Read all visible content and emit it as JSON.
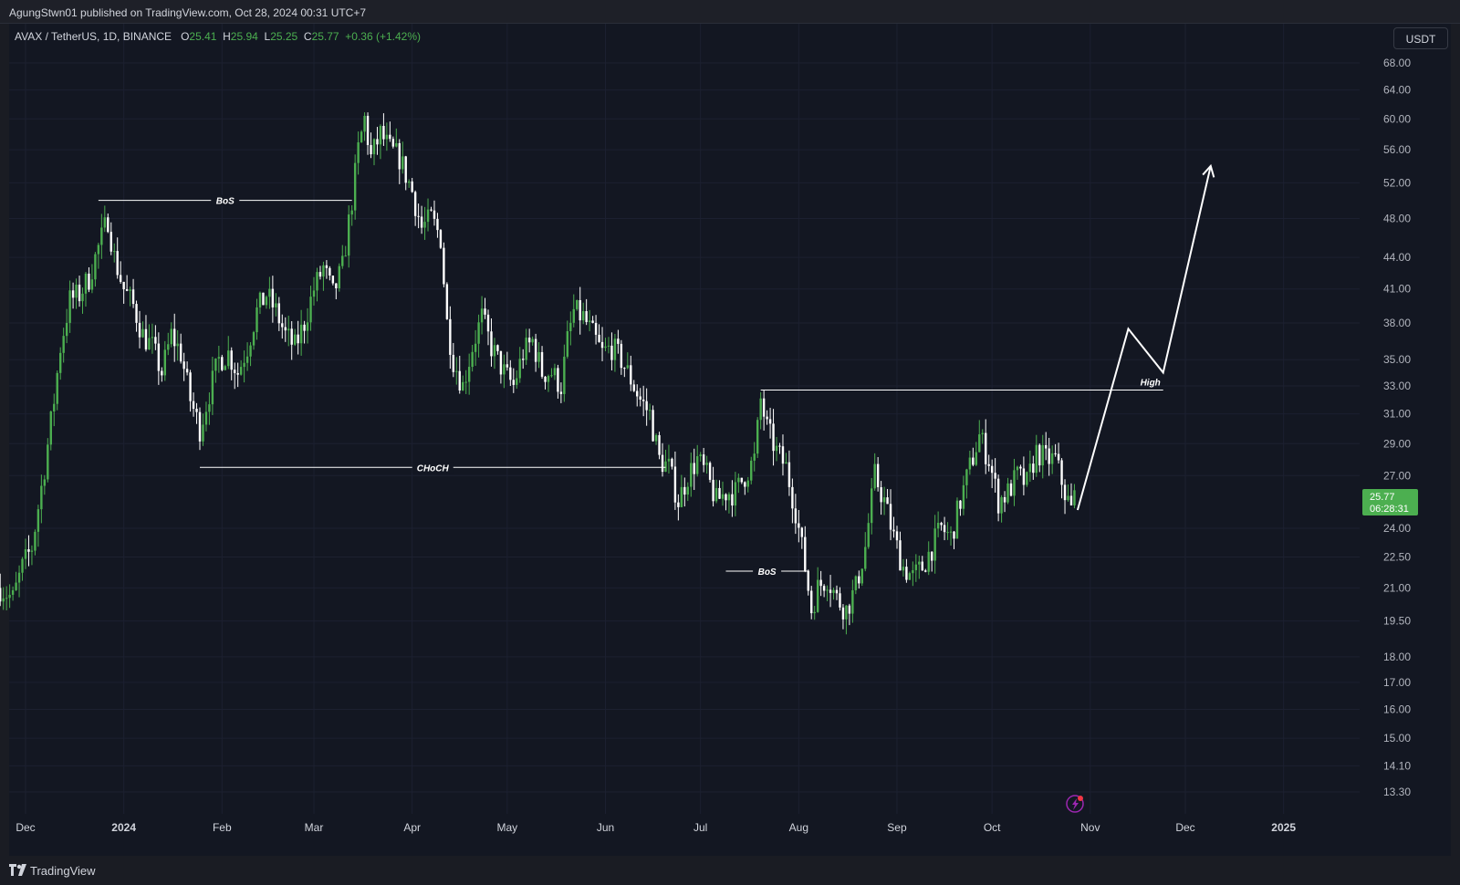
{
  "header": {
    "published_text": "AgungStwn01 published on TradingView.com, Oct 28, 2024 00:31 UTC+7"
  },
  "legend": {
    "symbol": "AVAX / TetherUS, 1D, BINANCE",
    "o_label": "O",
    "o_value": "25.41",
    "h_label": "H",
    "h_value": "25.94",
    "l_label": "L",
    "l_value": "25.25",
    "c_label": "C",
    "c_value": "25.77",
    "change": "+0.36 (+1.42%)"
  },
  "currency_button": "USDT",
  "price_tag": {
    "price": "25.77",
    "countdown": "06:28:31"
  },
  "footer": {
    "brand": "TradingView",
    "logo_icon": "tradingview-logo-icon"
  },
  "indicator_icon": "lightning-bolt-icon",
  "colors": {
    "up": "#4caf50",
    "down": "#ffffff",
    "bg": "#131722",
    "accent_red": "#f23645",
    "accent_purple": "#9c27b0"
  },
  "chart_data": {
    "type": "candlestick",
    "scale": "log",
    "y_ticks": [
      "68.00",
      "64.00",
      "60.00",
      "56.00",
      "52.00",
      "48.00",
      "44.00",
      "41.00",
      "38.00",
      "35.00",
      "33.00",
      "31.00",
      "29.00",
      "27.00",
      "24.00",
      "22.50",
      "21.00",
      "19.50",
      "18.00",
      "17.00",
      "16.00",
      "15.00",
      "14.10",
      "13.30"
    ],
    "x_ticks": [
      {
        "label": "Dec",
        "date": "2023-12-01",
        "bold": false
      },
      {
        "label": "2024",
        "date": "2024-01-01",
        "bold": true
      },
      {
        "label": "Feb",
        "date": "2024-02-01",
        "bold": false
      },
      {
        "label": "Mar",
        "date": "2024-03-01",
        "bold": false
      },
      {
        "label": "Apr",
        "date": "2024-04-01",
        "bold": false
      },
      {
        "label": "May",
        "date": "2024-05-01",
        "bold": false
      },
      {
        "label": "Jun",
        "date": "2024-06-01",
        "bold": false
      },
      {
        "label": "Jul",
        "date": "2024-07-01",
        "bold": false
      },
      {
        "label": "Aug",
        "date": "2024-08-01",
        "bold": false
      },
      {
        "label": "Sep",
        "date": "2024-09-01",
        "bold": false
      },
      {
        "label": "Oct",
        "date": "2024-10-01",
        "bold": false
      },
      {
        "label": "Nov",
        "date": "2024-11-01",
        "bold": false
      },
      {
        "label": "Dec",
        "date": "2024-12-01",
        "bold": false
      },
      {
        "label": "2025",
        "date": "2025-01-01",
        "bold": true
      }
    ],
    "price_path": [
      [
        "2023-11-23",
        21.0
      ],
      [
        "2023-11-27",
        20.5
      ],
      [
        "2023-11-30",
        22.0
      ],
      [
        "2023-12-03",
        23.0
      ],
      [
        "2023-12-07",
        27.5
      ],
      [
        "2023-12-10",
        32.0
      ],
      [
        "2023-12-12",
        36.0
      ],
      [
        "2023-12-15",
        40.0
      ],
      [
        "2023-12-18",
        40.5
      ],
      [
        "2023-12-21",
        42.0
      ],
      [
        "2023-12-24",
        45.0
      ],
      [
        "2023-12-27",
        48.0
      ],
      [
        "2023-12-29",
        44.0
      ],
      [
        "2024-01-01",
        41.0
      ],
      [
        "2024-01-04",
        39.5
      ],
      [
        "2024-01-07",
        37.0
      ],
      [
        "2024-01-10",
        36.0
      ],
      [
        "2024-01-13",
        34.0
      ],
      [
        "2024-01-16",
        37.0
      ],
      [
        "2024-01-19",
        35.5
      ],
      [
        "2024-01-22",
        32.0
      ],
      [
        "2024-01-25",
        30.0
      ],
      [
        "2024-01-28",
        32.5
      ],
      [
        "2024-01-31",
        35.0
      ],
      [
        "2024-02-03",
        35.5
      ],
      [
        "2024-02-06",
        34.0
      ],
      [
        "2024-02-09",
        36.0
      ],
      [
        "2024-02-12",
        39.0
      ],
      [
        "2024-02-15",
        40.5
      ],
      [
        "2024-02-18",
        39.0
      ],
      [
        "2024-02-21",
        37.0
      ],
      [
        "2024-02-24",
        36.0
      ],
      [
        "2024-02-27",
        38.0
      ],
      [
        "2024-03-01",
        41.0
      ],
      [
        "2024-03-04",
        43.0
      ],
      [
        "2024-03-07",
        40.5
      ],
      [
        "2024-03-10",
        43.0
      ],
      [
        "2024-03-13",
        50.0
      ],
      [
        "2024-03-15",
        56.0
      ],
      [
        "2024-03-17",
        60.0
      ],
      [
        "2024-03-19",
        55.0
      ],
      [
        "2024-03-22",
        58.0
      ],
      [
        "2024-03-25",
        56.0
      ],
      [
        "2024-03-28",
        55.0
      ],
      [
        "2024-04-01",
        51.0
      ],
      [
        "2024-04-04",
        47.0
      ],
      [
        "2024-04-07",
        48.0
      ],
      [
        "2024-04-10",
        46.0
      ],
      [
        "2024-04-12",
        38.0
      ],
      [
        "2024-04-14",
        35.0
      ],
      [
        "2024-04-17",
        33.0
      ],
      [
        "2024-04-20",
        36.0
      ],
      [
        "2024-04-23",
        38.5
      ],
      [
        "2024-04-26",
        36.0
      ],
      [
        "2024-04-30",
        34.0
      ],
      [
        "2024-05-03",
        33.0
      ],
      [
        "2024-05-06",
        35.5
      ],
      [
        "2024-05-09",
        36.5
      ],
      [
        "2024-05-12",
        34.0
      ],
      [
        "2024-05-15",
        34.0
      ],
      [
        "2024-05-18",
        33.0
      ],
      [
        "2024-05-20",
        36.5
      ],
      [
        "2024-05-22",
        39.0
      ],
      [
        "2024-05-25",
        38.5
      ],
      [
        "2024-05-28",
        37.0
      ],
      [
        "2024-05-31",
        35.5
      ],
      [
        "2024-06-03",
        36.0
      ],
      [
        "2024-06-06",
        35.0
      ],
      [
        "2024-06-09",
        33.5
      ],
      [
        "2024-06-12",
        32.0
      ],
      [
        "2024-06-15",
        31.0
      ],
      [
        "2024-06-18",
        28.0
      ],
      [
        "2024-06-21",
        27.5
      ],
      [
        "2024-06-24",
        25.5
      ],
      [
        "2024-06-27",
        27.0
      ],
      [
        "2024-06-30",
        28.0
      ],
      [
        "2024-07-03",
        27.0
      ],
      [
        "2024-07-06",
        25.5
      ],
      [
        "2024-07-09",
        26.0
      ],
      [
        "2024-07-12",
        26.0
      ],
      [
        "2024-07-15",
        27.0
      ],
      [
        "2024-07-18",
        28.0
      ],
      [
        "2024-07-20",
        32.0
      ],
      [
        "2024-07-22",
        30.0
      ],
      [
        "2024-07-25",
        28.5
      ],
      [
        "2024-07-28",
        27.5
      ],
      [
        "2024-07-31",
        25.0
      ],
      [
        "2024-08-03",
        22.0
      ],
      [
        "2024-08-05",
        20.0
      ],
      [
        "2024-08-07",
        21.0
      ],
      [
        "2024-08-10",
        21.5
      ],
      [
        "2024-08-13",
        20.5
      ],
      [
        "2024-08-16",
        20.0
      ],
      [
        "2024-08-19",
        21.0
      ],
      [
        "2024-08-22",
        23.0
      ],
      [
        "2024-08-25",
        27.0
      ],
      [
        "2024-08-28",
        25.5
      ],
      [
        "2024-08-31",
        23.5
      ],
      [
        "2024-09-03",
        22.0
      ],
      [
        "2024-09-06",
        21.5
      ],
      [
        "2024-09-09",
        22.0
      ],
      [
        "2024-09-12",
        23.0
      ],
      [
        "2024-09-15",
        24.0
      ],
      [
        "2024-09-18",
        23.5
      ],
      [
        "2024-09-21",
        25.5
      ],
      [
        "2024-09-24",
        27.5
      ],
      [
        "2024-09-27",
        29.5
      ],
      [
        "2024-09-30",
        28.0
      ],
      [
        "2024-10-03",
        25.5
      ],
      [
        "2024-10-06",
        26.0
      ],
      [
        "2024-10-09",
        27.0
      ],
      [
        "2024-10-12",
        26.5
      ],
      [
        "2024-10-15",
        28.5
      ],
      [
        "2024-10-18",
        28.0
      ],
      [
        "2024-10-21",
        28.0
      ],
      [
        "2024-10-24",
        26.0
      ],
      [
        "2024-10-26",
        25.0
      ],
      [
        "2024-10-27",
        25.77
      ]
    ],
    "annotations": [
      {
        "type": "hline",
        "label": "BoS",
        "y": 50.0,
        "x_start": "2023-12-24",
        "x_end": "2024-03-13"
      },
      {
        "type": "hline",
        "label": "CHoCH",
        "y": 27.5,
        "x_start": "2024-01-25",
        "x_end": "2024-06-20"
      },
      {
        "type": "hline",
        "label": "BoS",
        "y": 21.8,
        "x_start": "2024-07-09",
        "x_end": "2024-08-04"
      },
      {
        "type": "hline",
        "label": "High",
        "y": 32.7,
        "x_start": "2024-07-20",
        "x_end": "2024-11-24"
      }
    ],
    "projection_path": [
      [
        "2024-10-28",
        25.0
      ],
      [
        "2024-11-13",
        37.5
      ],
      [
        "2024-11-24",
        34.0
      ],
      [
        "2024-12-09",
        54.0
      ]
    ]
  }
}
